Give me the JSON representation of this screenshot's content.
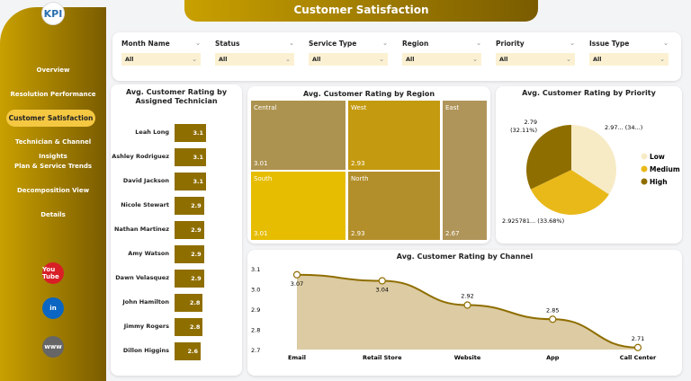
{
  "app": {
    "title": "Customer Satisfaction",
    "logo_text": "KPI"
  },
  "sidebar": {
    "items": [
      {
        "label": "Overview",
        "active": false
      },
      {
        "label": "Resolution Performance",
        "active": false
      },
      {
        "label": "Customer Satisfaction",
        "active": true
      },
      {
        "label": "Technician & Channel Insights",
        "active": false
      },
      {
        "label": "Plan & Service Trends",
        "active": false
      },
      {
        "label": "Decomposition View",
        "active": false
      },
      {
        "label": "Details",
        "active": false
      }
    ],
    "social": [
      {
        "name": "youtube-icon",
        "label": "You Tube",
        "color": "#d81f26"
      },
      {
        "name": "linkedin-icon",
        "label": "in",
        "color": "#0a66c2"
      },
      {
        "name": "globe-icon",
        "label": "www",
        "color": "#666666"
      }
    ]
  },
  "filters": [
    {
      "label": "Month Name",
      "value": "All"
    },
    {
      "label": "Status",
      "value": "All"
    },
    {
      "label": "Service Type",
      "value": "All"
    },
    {
      "label": "Region",
      "value": "All"
    },
    {
      "label": "Priority",
      "value": "All"
    },
    {
      "label": "Issue Type",
      "value": "All"
    }
  ],
  "technician": {
    "title": "Avg. Customer Rating by Assigned Technician",
    "rows": [
      {
        "name": "Leah Long",
        "value": "3.1"
      },
      {
        "name": "Ashley Rodriguez",
        "value": "3.1"
      },
      {
        "name": "David Jackson",
        "value": "3.1"
      },
      {
        "name": "Nicole Stewart",
        "value": "2.9"
      },
      {
        "name": "Nathan Martinez",
        "value": "2.9"
      },
      {
        "name": "Amy Watson",
        "value": "2.9"
      },
      {
        "name": "Dawn Velasquez",
        "value": "2.9"
      },
      {
        "name": "John Hamilton",
        "value": "2.8"
      },
      {
        "name": "Jimmy Rogers",
        "value": "2.8"
      },
      {
        "name": "Dillon Higgins",
        "value": "2.6"
      }
    ]
  },
  "region": {
    "title": "Avg. Customer Rating by Region",
    "tiles": [
      {
        "name": "Central",
        "value": "3.01",
        "color": "#ad9350"
      },
      {
        "name": "West",
        "value": "2.93",
        "color": "#c49a10"
      },
      {
        "name": "East",
        "value": "2.67",
        "color": "#b0955a"
      },
      {
        "name": "South",
        "value": "3.01",
        "color": "#e6bd00"
      },
      {
        "name": "North",
        "value": "2.93",
        "color": "#b38f2c"
      }
    ]
  },
  "chart_data": [
    {
      "type": "pie",
      "title": "Avg. Customer Rating by Priority",
      "legend_position": "right",
      "slices": [
        {
          "name": "Low",
          "value": 2.97,
          "percent": 34.21,
          "label": "2.97... (34...)",
          "color": "#f7ebc6"
        },
        {
          "name": "Medium",
          "value": 2.925781,
          "percent": 33.68,
          "label": "2.925781... (33.68%)",
          "color": "#e9b91a"
        },
        {
          "name": "High",
          "value": 2.79,
          "percent": 32.11,
          "label": "2.79 (32.11%)",
          "color": "#8f6e00"
        }
      ]
    },
    {
      "type": "area",
      "title": "Avg. Customer Rating by Channel",
      "categories": [
        "Email",
        "Retail Store",
        "Website",
        "App",
        "Call Center"
      ],
      "values": [
        3.07,
        3.04,
        2.92,
        2.85,
        2.71
      ],
      "value_labels": [
        "3.07",
        "3.04",
        "2.92",
        "2.85",
        "2.71"
      ],
      "ylim": [
        2.7,
        3.1
      ],
      "yticks": [
        "3.1",
        "3.0",
        "2.9",
        "2.8",
        "2.7"
      ],
      "line_color": "#8f6e00",
      "fill_color": "#dccba3"
    }
  ]
}
